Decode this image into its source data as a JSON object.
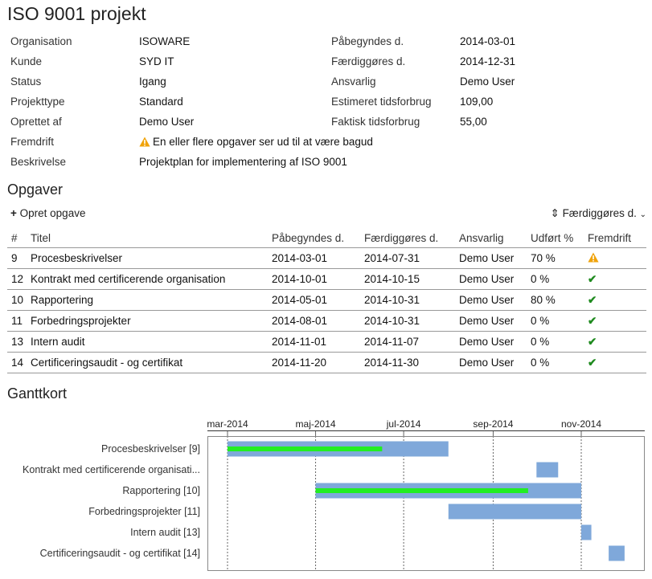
{
  "project": {
    "title": "ISO 9001 projekt",
    "fields_left": [
      {
        "label": "Organisation",
        "value": "ISOWARE"
      },
      {
        "label": "Kunde",
        "value": "SYD IT"
      },
      {
        "label": "Status",
        "value": "Igang"
      },
      {
        "label": "Projekttype",
        "value": "Standard"
      },
      {
        "label": "Oprettet af",
        "value": "Demo User"
      }
    ],
    "fields_right": [
      {
        "label": "Påbegyndes d.",
        "value": "2014-03-01"
      },
      {
        "label": "Færdiggøres d.",
        "value": "2014-12-31"
      },
      {
        "label": "Ansvarlig",
        "value": "Demo User"
      },
      {
        "label": "Estimeret tidsforbrug",
        "value": "109,00"
      },
      {
        "label": "Faktisk tidsforbrug",
        "value": "55,00"
      }
    ],
    "progress_label": "Fremdrift",
    "progress_value": "En eller flere opgaver ser ud til at være bagud",
    "description_label": "Beskrivelse",
    "description_value": "Projektplan for implementering af ISO 9001"
  },
  "tasks_section": {
    "title": "Opgaver",
    "create_label": "Opret opgave",
    "sort_label": "Færdiggøres d.",
    "columns": [
      "#",
      "Titel",
      "Påbegyndes d.",
      "Færdiggøres d.",
      "Ansvarlig",
      "Udført %",
      "Fremdrift"
    ],
    "rows": [
      {
        "id": "9",
        "title": "Procesbeskrivelser",
        "start": "2014-03-01",
        "end": "2014-07-31",
        "owner": "Demo User",
        "done": "70 %",
        "status": "warning-icon"
      },
      {
        "id": "12",
        "title": "Kontrakt med certificerende organisation",
        "start": "2014-10-01",
        "end": "2014-10-15",
        "owner": "Demo User",
        "done": "0 %",
        "status": "check-icon"
      },
      {
        "id": "10",
        "title": "Rapportering",
        "start": "2014-05-01",
        "end": "2014-10-31",
        "owner": "Demo User",
        "done": "80 %",
        "status": "check-icon"
      },
      {
        "id": "11",
        "title": "Forbedringsprojekter",
        "start": "2014-08-01",
        "end": "2014-10-31",
        "owner": "Demo User",
        "done": "0 %",
        "status": "check-icon"
      },
      {
        "id": "13",
        "title": "Intern audit",
        "start": "2014-11-01",
        "end": "2014-11-07",
        "owner": "Demo User",
        "done": "0 %",
        "status": "check-icon"
      },
      {
        "id": "14",
        "title": "Certificeringsaudit - og certifikat",
        "start": "2014-11-20",
        "end": "2014-11-30",
        "owner": "Demo User",
        "done": "0 %",
        "status": "check-icon"
      }
    ]
  },
  "gantt": {
    "title": "Ganttkort",
    "month_ticks": [
      {
        "label": "mar-2014",
        "date": "2014-03-01"
      },
      {
        "label": "maj-2014",
        "date": "2014-05-01"
      },
      {
        "label": "jul-2014",
        "date": "2014-07-01"
      },
      {
        "label": "sep-2014",
        "date": "2014-09-01"
      },
      {
        "label": "nov-2014",
        "date": "2014-11-01"
      }
    ],
    "bars": [
      {
        "label": "Procesbeskrivelser [9]",
        "start": "2014-03-01",
        "end": "2014-07-31",
        "progress": 0.7
      },
      {
        "label": "Kontrakt med certificerende organisati...",
        "start": "2014-10-01",
        "end": "2014-10-15",
        "progress": 0
      },
      {
        "label": "Rapportering [10]",
        "start": "2014-05-01",
        "end": "2014-10-31",
        "progress": 0.8
      },
      {
        "label": "Forbedringsprojekter [11]",
        "start": "2014-08-01",
        "end": "2014-10-31",
        "progress": 0
      },
      {
        "label": "Intern audit [13]",
        "start": "2014-11-01",
        "end": "2014-11-07",
        "progress": 0
      },
      {
        "label": "Certificeringsaudit - og certifikat [14]",
        "start": "2014-11-20",
        "end": "2014-11-30",
        "progress": 0
      }
    ],
    "colors": {
      "bar": "#7fa8da",
      "progress": "#22ee22",
      "grid": "#666666",
      "frame": "#888888"
    }
  }
}
